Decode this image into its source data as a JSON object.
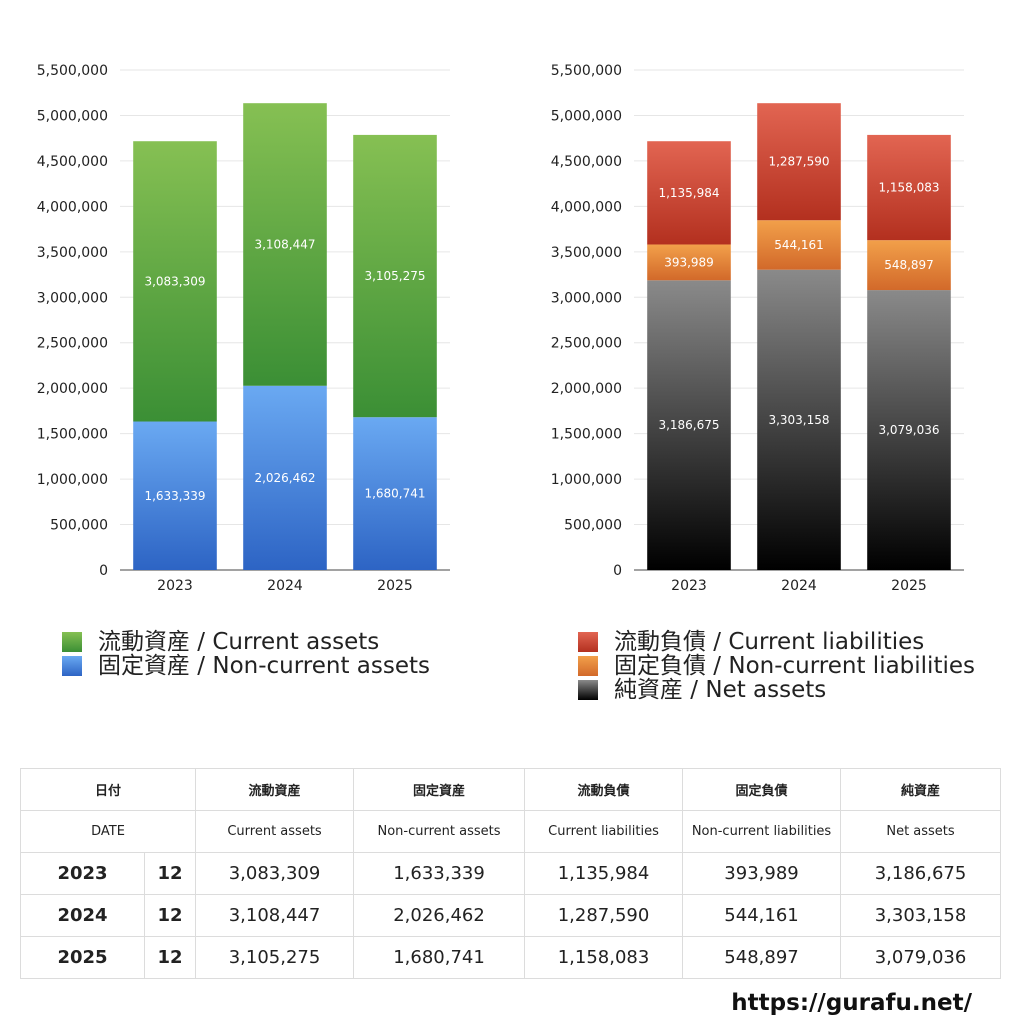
{
  "colors": {
    "current_assets": [
      "#86c053",
      "#3b8f35"
    ],
    "non_current_assets": [
      "#6aa9f2",
      "#2d64c4"
    ],
    "current_liabilities": [
      "#e26552",
      "#b3301f"
    ],
    "non_current_liabilities": [
      "#f2a04a",
      "#d2692a"
    ],
    "net_assets": [
      "#8a8a8a",
      "#000000"
    ]
  },
  "chart_data": [
    {
      "type": "bar",
      "stacked": true,
      "categories": [
        "2023",
        "2024",
        "2025"
      ],
      "ylim": [
        0,
        5500000
      ],
      "yticks": [
        "0",
        "500,000",
        "1,000,000",
        "1,500,000",
        "2,000,000",
        "2,500,000",
        "3,000,000",
        "3,500,000",
        "4,000,000",
        "4,500,000",
        "5,000,000",
        "5,500,000"
      ],
      "grid": true,
      "legend_position": "bottom",
      "series": [
        {
          "name": "固定資産 / Non-current assets",
          "key": "non_current_assets",
          "values": [
            1633339,
            2026462,
            1680741
          ],
          "labels": [
            "1,633,339",
            "2,026,462",
            "1,680,741"
          ]
        },
        {
          "name": "流動資産 / Current assets",
          "key": "current_assets",
          "values": [
            3083309,
            3108447,
            3105275
          ],
          "labels": [
            "3,083,309",
            "3,108,447",
            "3,105,275"
          ]
        }
      ]
    },
    {
      "type": "bar",
      "stacked": true,
      "categories": [
        "2023",
        "2024",
        "2025"
      ],
      "ylim": [
        0,
        5500000
      ],
      "yticks": [
        "0",
        "500,000",
        "1,000,000",
        "1,500,000",
        "2,000,000",
        "2,500,000",
        "3,000,000",
        "3,500,000",
        "4,000,000",
        "4,500,000",
        "5,000,000",
        "5,500,000"
      ],
      "grid": true,
      "legend_position": "bottom",
      "series": [
        {
          "name": "純資産 / Net assets",
          "key": "net_assets",
          "values": [
            3186675,
            3303158,
            3079036
          ],
          "labels": [
            "3,186,675",
            "3,303,158",
            "3,079,036"
          ]
        },
        {
          "name": "固定負債 / Non-current liabilities",
          "key": "non_current_liabilities",
          "values": [
            393989,
            544161,
            548897
          ],
          "labels": [
            "393,989",
            "544,161",
            "548,897"
          ]
        },
        {
          "name": "流動負債 / Current liabilities",
          "key": "current_liabilities",
          "values": [
            1135984,
            1287590,
            1158083
          ],
          "labels": [
            "1,135,984",
            "1,287,590",
            "1,158,083"
          ]
        }
      ]
    }
  ],
  "legend_left": [
    {
      "label": "流動資産 / Current assets",
      "key": "current_assets"
    },
    {
      "label": "固定資産 / Non-current assets",
      "key": "non_current_assets"
    }
  ],
  "legend_right": [
    {
      "label": "流動負債 / Current liabilities",
      "key": "current_liabilities"
    },
    {
      "label": "固定負債 / Non-current liabilities",
      "key": "non_current_liabilities"
    },
    {
      "label": "純資産 / Net assets",
      "key": "net_assets"
    }
  ],
  "table": {
    "header_jp": {
      "date": "日付",
      "ca": "流動資産",
      "nca": "固定資産",
      "cl": "流動負債",
      "ncl": "固定負債",
      "na": "純資産"
    },
    "header_en": {
      "date": "DATE",
      "ca": "Current assets",
      "nca": "Non-current assets",
      "cl": "Current liabilities",
      "ncl": "Non-current liabilities",
      "na": "Net assets"
    },
    "rows": [
      {
        "year": "2023",
        "month": "12",
        "ca": "3,083,309",
        "nca": "1,633,339",
        "cl": "1,135,984",
        "ncl": "393,989",
        "na": "3,186,675"
      },
      {
        "year": "2024",
        "month": "12",
        "ca": "3,108,447",
        "nca": "2,026,462",
        "cl": "1,287,590",
        "ncl": "544,161",
        "na": "3,303,158"
      },
      {
        "year": "2025",
        "month": "12",
        "ca": "3,105,275",
        "nca": "1,680,741",
        "cl": "1,158,083",
        "ncl": "548,897",
        "na": "3,079,036"
      }
    ]
  },
  "watermark": "https://gurafu.net/"
}
